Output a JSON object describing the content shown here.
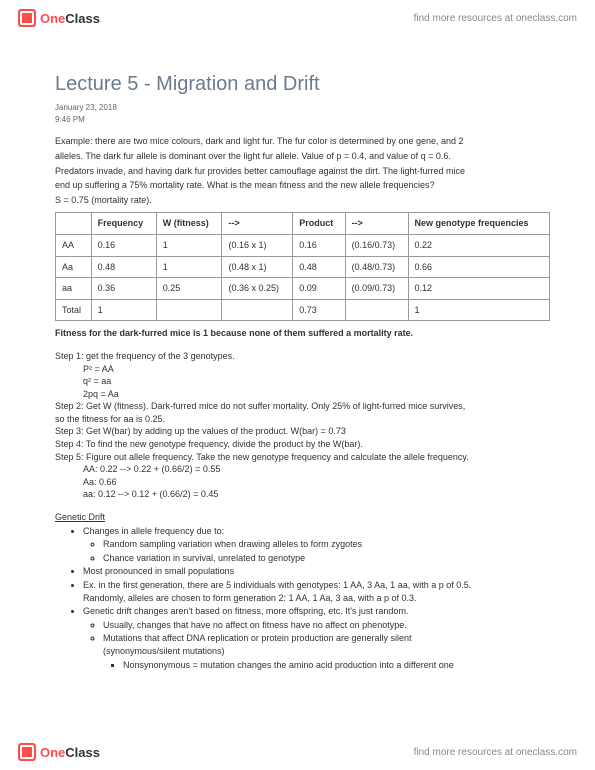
{
  "brand": {
    "one": "One",
    "class": "Class",
    "link": "find more resources at oneclass.com"
  },
  "title": "Lecture 5 - Migration and Drift",
  "date": "January 23, 2018",
  "time": "9:46 PM",
  "intro": [
    "Example: there are two mice colours, dark and light fur. The fur color is determined by one gene, and 2",
    "alleles. The dark fur allele is dominant over the light fur allele. Value of p = 0.4, and value of q = 0.6.",
    "Predators invade, and having dark fur provides better camouflage against the dirt. The light-furred mice",
    "end up suffering a 75% mortality rate. What is the mean fitness and the new allele frequencies?",
    "S = 0.75 (mortality rate)."
  ],
  "table": {
    "headers": [
      "",
      "Frequency",
      "W (fitness)",
      "-->",
      "Product",
      "-->",
      "New genotype frequencies"
    ],
    "rows": [
      [
        "AA",
        "0.16",
        "1",
        "(0.16 x 1)",
        "0.16",
        "(0.16/0.73)",
        "0.22"
      ],
      [
        "Aa",
        "0.48",
        "1",
        "(0.48 x 1)",
        "0.48",
        "(0.48/0.73)",
        "0.66"
      ],
      [
        "aa",
        "0.36",
        "0.25",
        "(0.36 x 0.25)",
        "0.09",
        "(0.09/0.73)",
        "0.12"
      ],
      [
        "Total",
        "1",
        "",
        "",
        "0.73",
        "",
        "1"
      ]
    ]
  },
  "tablenote": "Fitness for the dark-furred mice is 1 because none of them suffered a mortality rate.",
  "steps": {
    "s1": "Step 1: get the frequency of the 3 genotypes.",
    "s1a": "P² = AA",
    "s1b": "q² = aa",
    "s1c": "2pq = Aa",
    "s2a": "Step 2: Get W (fitness). Dark-furred mice do not suffer mortality. Only 25% of light-furred mice survives,",
    "s2b": "so the fitness for aa is 0.25.",
    "s3": "Step 3: Get W(bar) by adding up the values of the product. W(bar) = 0.73",
    "s4": "Step 4: To find the new genotype frequency, divide the product by the W(bar).",
    "s5": "Step 5: Figure out allele frequency. Take the new genotype frequency and calculate the allele frequency.",
    "s5a": "AA: 0.22 --> 0.22 + (0.66/2) = 0.55",
    "s5b": "Aa: 0.66",
    "s5c": "aa: 0.12 --> 0.12 + (0.66/2) = 0.45"
  },
  "drift": {
    "heading": "Genetic Drift",
    "b1": "Changes in allele frequency due to:",
    "b1a": "Random sampling variation when drawing alleles to form zygotes",
    "b1b": "Chance variation in survival, unrelated to genotype",
    "b2": "Most pronounced in small populations",
    "b3a": "Ex. in the first generation, there are 5 individuals with genotypes: 1 AA, 3 Aa, 1 aa, with a p of 0.5.",
    "b3b": "Randomly, alleles are chosen to form generation 2: 1 AA, 1 Aa, 3 aa, with a p of 0.3.",
    "b4": "Genetic drift changes aren't based on fitness, more offspring, etc. It's just random.",
    "b4a": "Usually, changes that have no affect on fitness have no affect on phenotype.",
    "b4b1": "Mutations that affect DNA replication or protein production are generally silent",
    "b4b2": "(synonymous/silent mutations)",
    "b4c": "Nonsynonymous = mutation changes the amino acid production into a different one"
  }
}
